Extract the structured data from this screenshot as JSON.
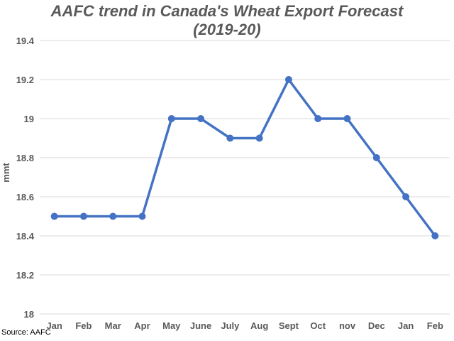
{
  "chart_data": {
    "type": "line",
    "title": "AAFC trend in Canada's Wheat Export Forecast",
    "subtitle": "(2019-20)",
    "xlabel": "",
    "ylabel": "mmt",
    "categories": [
      "Jan",
      "Feb",
      "Mar",
      "Apr",
      "May",
      "June",
      "July",
      "Aug",
      "Sept",
      "Oct",
      "nov",
      "Dec",
      "Jan",
      "Feb"
    ],
    "series": [
      {
        "values": [
          18.5,
          18.5,
          18.5,
          18.5,
          19.0,
          19.0,
          18.9,
          18.9,
          19.2,
          19.0,
          19.0,
          18.8,
          18.6,
          18.4
        ]
      }
    ],
    "ylim": [
      18,
      19.4
    ],
    "yticks": [
      "18",
      "18.2",
      "18.4",
      "18.6",
      "18.8",
      "19",
      "19.2",
      "19.4"
    ],
    "grid": true,
    "line_color": "#4472c4",
    "source": "Source: AAFC"
  }
}
